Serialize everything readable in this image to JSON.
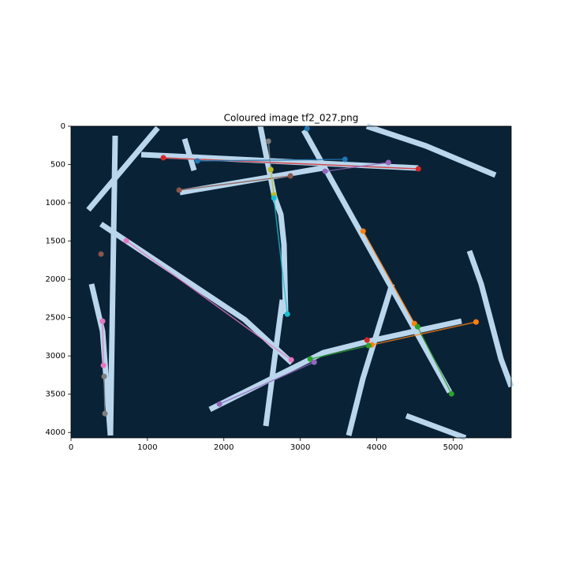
{
  "chart_data": {
    "type": "scatter",
    "title": "Coloured image tf2_027.png",
    "xlim": [
      0,
      5760
    ],
    "ylim": [
      4070,
      0
    ],
    "xticks": [
      0,
      1000,
      2000,
      3000,
      4000,
      5000
    ],
    "yticks": [
      0,
      500,
      1000,
      1500,
      2000,
      2500,
      3000,
      3500,
      4000
    ],
    "series": [
      {
        "color": "#d62728",
        "x": [
          1209,
          4545
        ],
        "values": [
          412,
          557
        ]
      },
      {
        "color": "#1f77b4",
        "x": [
          1653,
          3585
        ],
        "values": [
          454,
          433
        ]
      },
      {
        "color": "#9467bd",
        "x": [
          3326,
          4153
        ],
        "values": [
          588,
          474
        ]
      },
      {
        "color": "#8c564b",
        "x": [
          1415,
          2872
        ],
        "values": [
          835,
          649
        ]
      },
      {
        "color": "#7f7f7f",
        "x": [
          2583,
          2614
        ],
        "values": [
          196,
          567
        ]
      },
      {
        "color": "#bcbd22",
        "x": [
          2614,
          2655
        ],
        "values": [
          567,
          897
        ]
      },
      {
        "color": "#17becf",
        "x": [
          2655,
          2831
        ],
        "values": [
          938,
          2454
        ]
      },
      {
        "color": "#1f77b4",
        "x": [
          3089
        ],
        "values": [
          31
        ]
      },
      {
        "color": "#ff7f0e",
        "x": [
          3822,
          4494
        ],
        "values": [
          1371,
          2577
        ]
      },
      {
        "color": "#2ca02c",
        "x": [
          4535,
          4979
        ],
        "values": [
          2619,
          3495
        ]
      },
      {
        "color": "#ff7f0e",
        "x": [
          3936,
          5300
        ],
        "values": [
          2856,
          2557
        ]
      },
      {
        "color": "#d62728",
        "x": [
          3874
        ],
        "values": [
          2794
        ]
      },
      {
        "color": "#2ca02c",
        "x": [
          3130,
          3895
        ],
        "values": [
          3041,
          2866
        ]
      },
      {
        "color": "#9467bd",
        "x": [
          1942,
          3182
        ],
        "values": [
          3629,
          3082
        ]
      },
      {
        "color": "#e377c2",
        "x": [
          723,
          2882
        ],
        "values": [
          1495,
          3052
        ]
      },
      {
        "color": "#e377c2",
        "x": [
          413,
          424
        ],
        "values": [
          2546,
          3124
        ]
      },
      {
        "color": "#8c564b",
        "x": [
          393
        ],
        "values": [
          1670
        ]
      },
      {
        "color": "#7f7f7f",
        "x": [
          434,
          444
        ],
        "values": [
          3268,
          3753
        ]
      }
    ]
  }
}
